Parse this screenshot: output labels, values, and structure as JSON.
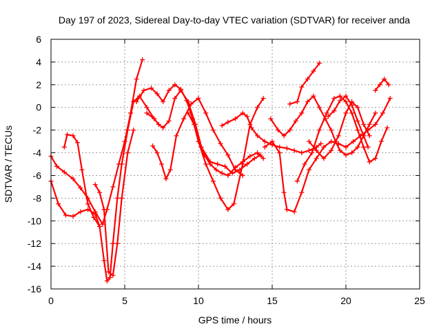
{
  "chart_data": {
    "type": "scatter",
    "title": "Day 197 of 2023, Sidereal Day-to-day VTEC variation (SDTVAR) for receiver anda",
    "xlabel": "GPS time / hours",
    "ylabel": "SDTVAR / TECUs",
    "xlim": [
      0,
      25
    ],
    "ylim": [
      -16,
      6
    ],
    "xticks": [
      "0",
      "5",
      "10",
      "15",
      "20",
      "25"
    ],
    "yticks": [
      "-16",
      "-14",
      "-12",
      "-10",
      "-8",
      "-6",
      "-4",
      "-2",
      "0",
      "2",
      "4",
      "6"
    ],
    "grid": true,
    "marker": "plus",
    "color": "#ff0000",
    "series": [
      {
        "x": [
          0.0,
          0.4,
          0.9,
          1.5,
          2.0,
          2.5,
          3.0,
          3.5,
          3.8,
          4.2,
          4.6,
          5.0,
          5.4,
          5.8,
          6.2
        ],
        "y": [
          -4.3,
          -5.2,
          -5.7,
          -6.3,
          -7.1,
          -8.0,
          -9.2,
          -10.3,
          -9.0,
          -7.0,
          -5.0,
          -3.0,
          -0.5,
          2.5,
          4.2
        ]
      },
      {
        "x": [
          0.0,
          0.5,
          1.0,
          1.5,
          2.0,
          2.5,
          3.0,
          3.3,
          3.6,
          3.8,
          4.0,
          4.2,
          4.5,
          4.8,
          5.2,
          5.6,
          6.0,
          6.5,
          7.0
        ],
        "y": [
          -6.5,
          -8.5,
          -9.5,
          -9.6,
          -9.2,
          -9.0,
          -9.4,
          -10.5,
          -13.5,
          -15.3,
          -15.0,
          -12.0,
          -8.0,
          -5.0,
          -2.0,
          0.5,
          1.0,
          0.0,
          -1.0
        ]
      },
      {
        "x": [
          0.9,
          1.1,
          1.5,
          1.8,
          2.1,
          2.5,
          2.9,
          3.3
        ],
        "y": [
          -3.5,
          -2.4,
          -2.5,
          -3.1,
          -5.5,
          -8.5,
          -9.7,
          -10.5
        ]
      },
      {
        "x": [
          3.0,
          3.3,
          3.6,
          3.9,
          4.2,
          4.5,
          4.8,
          5.2,
          5.6
        ],
        "y": [
          -6.8,
          -7.5,
          -9.0,
          -14.5,
          -14.8,
          -12.0,
          -8.0,
          -4.0,
          -2.0
        ]
      },
      {
        "x": [
          5.8,
          6.3,
          6.8,
          7.2,
          7.6,
          8.0,
          8.4,
          8.8,
          9.2,
          9.6,
          10.0,
          10.5,
          11.0,
          11.5,
          12.0,
          12.4,
          13.0,
          13.5,
          14.0,
          14.4
        ],
        "y": [
          0.5,
          1.5,
          1.7,
          1.2,
          0.5,
          1.5,
          2.0,
          1.6,
          0.6,
          -1.0,
          -3.0,
          -5.0,
          -6.5,
          -8.0,
          -9.0,
          -8.5,
          -5.0,
          -1.5,
          0.0,
          0.8
        ]
      },
      {
        "x": [
          6.5,
          7.0,
          7.3,
          7.6,
          8.0,
          8.4,
          8.8,
          9.3,
          9.8,
          10.2,
          10.8,
          11.3,
          11.8,
          12.3,
          12.8,
          13.3,
          13.8,
          14.2
        ],
        "y": [
          -0.5,
          -1.0,
          -1.5,
          -1.8,
          -1.2,
          0.8,
          1.5,
          0.5,
          -1.5,
          -3.5,
          -4.8,
          -5.0,
          -5.2,
          -5.8,
          -5.5,
          -5.0,
          -4.5,
          -4.2
        ]
      },
      {
        "x": [
          6.9,
          7.2,
          7.5,
          7.8,
          8.1,
          8.5,
          9.0,
          9.5,
          10.0,
          10.5,
          11.0,
          11.5,
          12.0,
          12.5,
          13.0
        ],
        "y": [
          -3.4,
          -4.0,
          -5.0,
          -6.3,
          -5.5,
          -2.5,
          -1.0,
          0.3,
          0.8,
          -0.5,
          -2.0,
          -3.2,
          -4.2,
          -5.5,
          -6.0
        ]
      },
      {
        "x": [
          9.3,
          9.7,
          10.0,
          10.4,
          10.8,
          11.2,
          11.6,
          12.0,
          12.5,
          13.0,
          13.5,
          14.0,
          14.4
        ],
        "y": [
          -0.5,
          -1.5,
          -3.0,
          -4.2,
          -5.0,
          -5.5,
          -5.8,
          -6.0,
          -5.3,
          -4.8,
          -4.3,
          -4.0,
          -4.5
        ]
      },
      {
        "x": [
          11.6,
          12.0,
          12.5,
          13.0,
          13.3,
          13.6,
          14.0,
          14.5,
          15.0,
          15.5,
          16.0,
          16.5,
          17.0,
          17.5,
          18.0,
          18.3
        ],
        "y": [
          -1.6,
          -1.3,
          -1.0,
          -0.5,
          -0.8,
          -1.8,
          -2.5,
          -3.0,
          -3.3,
          -3.5,
          -3.6,
          -3.8,
          -4.0,
          -3.8,
          -3.5,
          -3.2
        ]
      },
      {
        "x": [
          14.5,
          15.0,
          15.5,
          15.8,
          16.0,
          16.5,
          17.0,
          17.5,
          18.0,
          18.5,
          19.0,
          19.5,
          20.0,
          20.5,
          21.0,
          21.5,
          22.0,
          22.5,
          23.0
        ],
        "y": [
          -3.5,
          -3.0,
          -4.0,
          -7.5,
          -9.0,
          -9.2,
          -7.5,
          -5.5,
          -4.5,
          -3.5,
          -3.0,
          -3.2,
          -3.5,
          -3.0,
          -2.5,
          -2.0,
          -1.5,
          -0.5,
          0.8
        ]
      },
      {
        "x": [
          14.9,
          15.4,
          15.8,
          16.2,
          16.6,
          17.0,
          17.4,
          17.8,
          18.2,
          18.6,
          19.0,
          19.3,
          19.6,
          20.0,
          20.4,
          20.8,
          21.2,
          21.6,
          22.0
        ],
        "y": [
          -1.0,
          -2.0,
          -2.5,
          -2.0,
          -1.2,
          -0.5,
          0.5,
          1.0,
          0.0,
          -1.0,
          -2.0,
          -3.0,
          -3.8,
          -4.2,
          -4.0,
          -3.5,
          -2.5,
          -1.5,
          -0.5
        ]
      },
      {
        "x": [
          16.2,
          16.7,
          17.0,
          17.4,
          17.8,
          18.2
        ],
        "y": [
          0.3,
          0.5,
          1.8,
          2.5,
          3.2,
          3.9
        ]
      },
      {
        "x": [
          16.7,
          17.2,
          17.7,
          18.2,
          18.7,
          19.2,
          19.6,
          20.0,
          20.4,
          20.8,
          21.2,
          21.6,
          22.0,
          22.4,
          22.8
        ],
        "y": [
          -6.5,
          -5.0,
          -4.0,
          -2.0,
          -0.5,
          0.8,
          1.0,
          0.5,
          -0.5,
          -2.0,
          -3.5,
          -4.8,
          -4.5,
          -3.0,
          -1.8
        ]
      },
      {
        "x": [
          17.5,
          18.0,
          18.5,
          19.0,
          19.5,
          20.0,
          20.4,
          20.8,
          21.2,
          21.6
        ],
        "y": [
          -3.0,
          -3.8,
          -4.5,
          -3.8,
          -2.5,
          -0.5,
          0.5,
          0.0,
          -1.5,
          -2.5
        ]
      },
      {
        "x": [
          18.8,
          19.2,
          19.6,
          20.0,
          20.4,
          20.8,
          21.2,
          21.5
        ],
        "y": [
          -0.8,
          -0.3,
          0.6,
          1.0,
          0.2,
          -1.2,
          -2.5,
          -3.5
        ]
      },
      {
        "x": [
          22.0,
          22.3,
          22.6,
          22.9
        ],
        "y": [
          1.5,
          2.0,
          2.5,
          2.0
        ]
      }
    ]
  }
}
